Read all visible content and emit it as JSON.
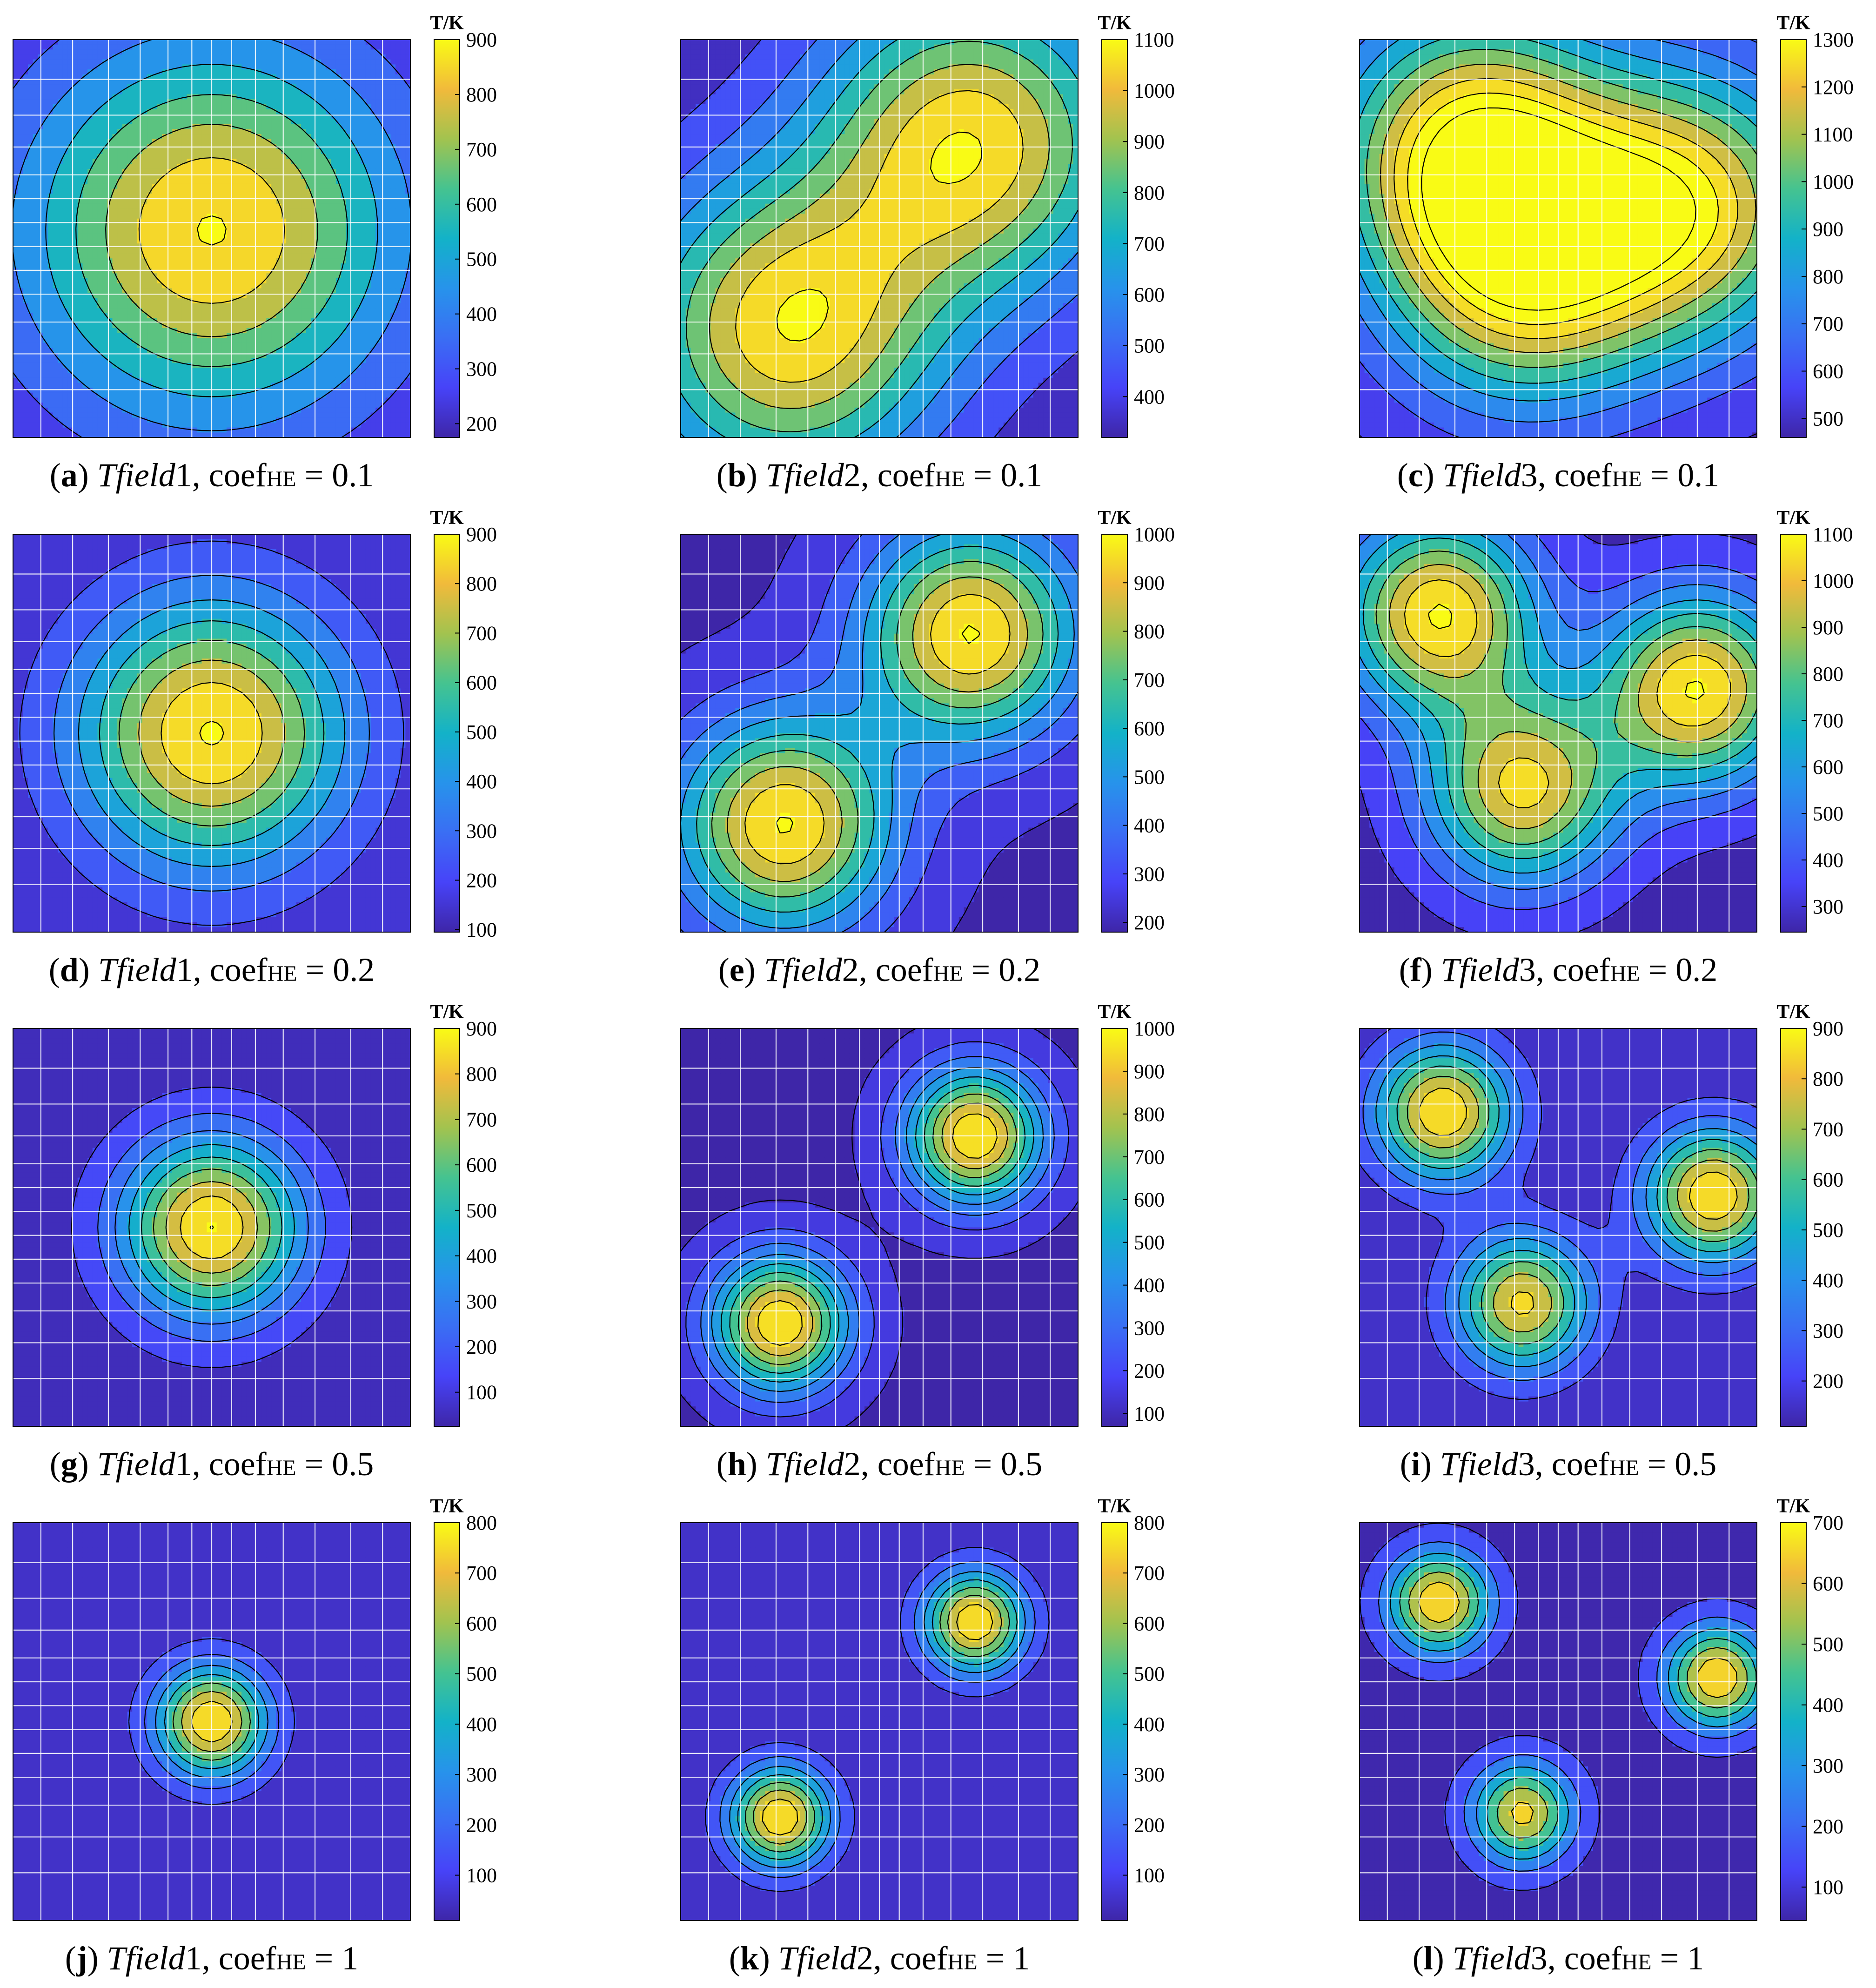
{
  "chart_data": [
    {
      "type": "heatmap",
      "panel": "a",
      "field": "Tfield1",
      "coef": "0.1",
      "unit": "T/K",
      "clim": [
        175,
        900
      ],
      "ticks": [
        200,
        300,
        400,
        500,
        600,
        700,
        800,
        900
      ],
      "base": 170,
      "sources": [
        {
          "x": 0.5,
          "y": 0.52,
          "amp": 735,
          "s": 0.33
        }
      ]
    },
    {
      "type": "heatmap",
      "panel": "b",
      "field": "Tfield2",
      "coef": "0.1",
      "unit": "T/K",
      "clim": [
        320,
        1100
      ],
      "ticks": [
        400,
        500,
        600,
        700,
        800,
        900,
        1000,
        1100
      ],
      "base": 310,
      "sources": [
        {
          "x": 0.27,
          "y": 0.27,
          "amp": 760,
          "s": 0.27
        },
        {
          "x": 0.73,
          "y": 0.74,
          "amp": 760,
          "s": 0.27
        }
      ]
    },
    {
      "type": "heatmap",
      "panel": "c",
      "field": "Tfield3",
      "coef": "0.1",
      "unit": "T/K",
      "clim": [
        460,
        1300
      ],
      "ticks": [
        500,
        600,
        700,
        800,
        900,
        1000,
        1100,
        1200,
        1300
      ],
      "base": 455,
      "sources": [
        {
          "x": 0.28,
          "y": 0.73,
          "amp": 820,
          "s": 0.24
        },
        {
          "x": 0.82,
          "y": 0.58,
          "amp": 800,
          "s": 0.24
        },
        {
          "x": 0.41,
          "y": 0.41,
          "amp": 720,
          "s": 0.24
        }
      ]
    },
    {
      "type": "heatmap",
      "panel": "d",
      "field": "Tfield1",
      "coef": "0.2",
      "unit": "T/K",
      "clim": [
        95,
        900
      ],
      "ticks": [
        100,
        200,
        300,
        400,
        500,
        600,
        700,
        800,
        900
      ],
      "base": 92,
      "sources": [
        {
          "x": 0.5,
          "y": 0.5,
          "amp": 815,
          "s": 0.24
        }
      ]
    },
    {
      "type": "heatmap",
      "panel": "e",
      "field": "Tfield2",
      "coef": "0.2",
      "unit": "T/K",
      "clim": [
        180,
        1000
      ],
      "ticks": [
        200,
        300,
        400,
        500,
        600,
        700,
        800,
        900,
        1000
      ],
      "base": 175,
      "sources": [
        {
          "x": 0.26,
          "y": 0.27,
          "amp": 830,
          "s": 0.19
        },
        {
          "x": 0.73,
          "y": 0.75,
          "amp": 830,
          "s": 0.19
        }
      ]
    },
    {
      "type": "heatmap",
      "panel": "f",
      "field": "Tfield3",
      "coef": "0.2",
      "unit": "T/K",
      "clim": [
        245,
        1100
      ],
      "ticks": [
        300,
        400,
        500,
        600,
        700,
        800,
        900,
        1000,
        1100
      ],
      "base": 240,
      "sources": [
        {
          "x": 0.2,
          "y": 0.8,
          "amp": 860,
          "s": 0.17
        },
        {
          "x": 0.85,
          "y": 0.61,
          "amp": 860,
          "s": 0.17
        },
        {
          "x": 0.41,
          "y": 0.36,
          "amp": 780,
          "s": 0.17
        }
      ]
    },
    {
      "type": "heatmap",
      "panel": "g",
      "field": "Tfield1",
      "coef": "0.5",
      "unit": "T/K",
      "clim": [
        25,
        900
      ],
      "ticks": [
        100,
        200,
        300,
        400,
        500,
        600,
        700,
        800,
        900
      ],
      "base": 22,
      "sources": [
        {
          "x": 0.5,
          "y": 0.5,
          "amp": 880,
          "s": 0.16
        }
      ]
    },
    {
      "type": "heatmap",
      "panel": "h",
      "field": "Tfield2",
      "coef": "0.5",
      "unit": "T/K",
      "clim": [
        70,
        1000
      ],
      "ticks": [
        100,
        200,
        300,
        400,
        500,
        600,
        700,
        800,
        900,
        1000
      ],
      "base": 65,
      "sources": [
        {
          "x": 0.25,
          "y": 0.26,
          "amp": 935,
          "s": 0.12
        },
        {
          "x": 0.74,
          "y": 0.73,
          "amp": 935,
          "s": 0.12
        }
      ]
    },
    {
      "type": "heatmap",
      "panel": "i",
      "field": "Tfield3",
      "coef": "0.5",
      "unit": "T/K",
      "clim": [
        110,
        900
      ],
      "ticks": [
        200,
        300,
        400,
        500,
        600,
        700,
        800,
        900
      ],
      "base": 105,
      "sources": [
        {
          "x": 0.21,
          "y": 0.79,
          "amp": 790,
          "s": 0.12
        },
        {
          "x": 0.89,
          "y": 0.58,
          "amp": 790,
          "s": 0.12
        },
        {
          "x": 0.41,
          "y": 0.31,
          "amp": 720,
          "s": 0.12
        }
      ]
    },
    {
      "type": "heatmap",
      "panel": "j",
      "field": "Tfield1",
      "coef": "1",
      "unit": "T/K",
      "clim": [
        10,
        800
      ],
      "ticks": [
        100,
        200,
        300,
        400,
        500,
        600,
        700,
        800
      ],
      "base": 8,
      "sources": [
        {
          "x": 0.5,
          "y": 0.5,
          "amp": 790,
          "s": 0.1
        }
      ]
    },
    {
      "type": "heatmap",
      "panel": "k",
      "field": "Tfield2",
      "coef": "1",
      "unit": "T/K",
      "clim": [
        10,
        800
      ],
      "ticks": [
        100,
        200,
        300,
        400,
        500,
        600,
        700,
        800
      ],
      "base": 8,
      "sources": [
        {
          "x": 0.25,
          "y": 0.26,
          "amp": 790,
          "s": 0.09
        },
        {
          "x": 0.74,
          "y": 0.75,
          "amp": 790,
          "s": 0.09
        }
      ]
    },
    {
      "type": "heatmap",
      "panel": "l",
      "field": "Tfield3",
      "coef": "1",
      "unit": "T/K",
      "clim": [
        45,
        700
      ],
      "ticks": [
        100,
        200,
        300,
        400,
        500,
        600,
        700
      ],
      "base": 42,
      "sources": [
        {
          "x": 0.2,
          "y": 0.8,
          "amp": 655,
          "s": 0.09
        },
        {
          "x": 0.9,
          "y": 0.61,
          "amp": 655,
          "s": 0.09
        },
        {
          "x": 0.41,
          "y": 0.27,
          "amp": 590,
          "s": 0.09
        }
      ]
    }
  ],
  "legend": {
    "unit_label": "T/K"
  },
  "caption": {
    "coef_name": "coef",
    "coef_sub": "HE",
    "equals": "="
  },
  "colors": {
    "colormap": "parula",
    "contour_line": "#000000",
    "grid": "#ffffff",
    "background": "#ffffff"
  }
}
